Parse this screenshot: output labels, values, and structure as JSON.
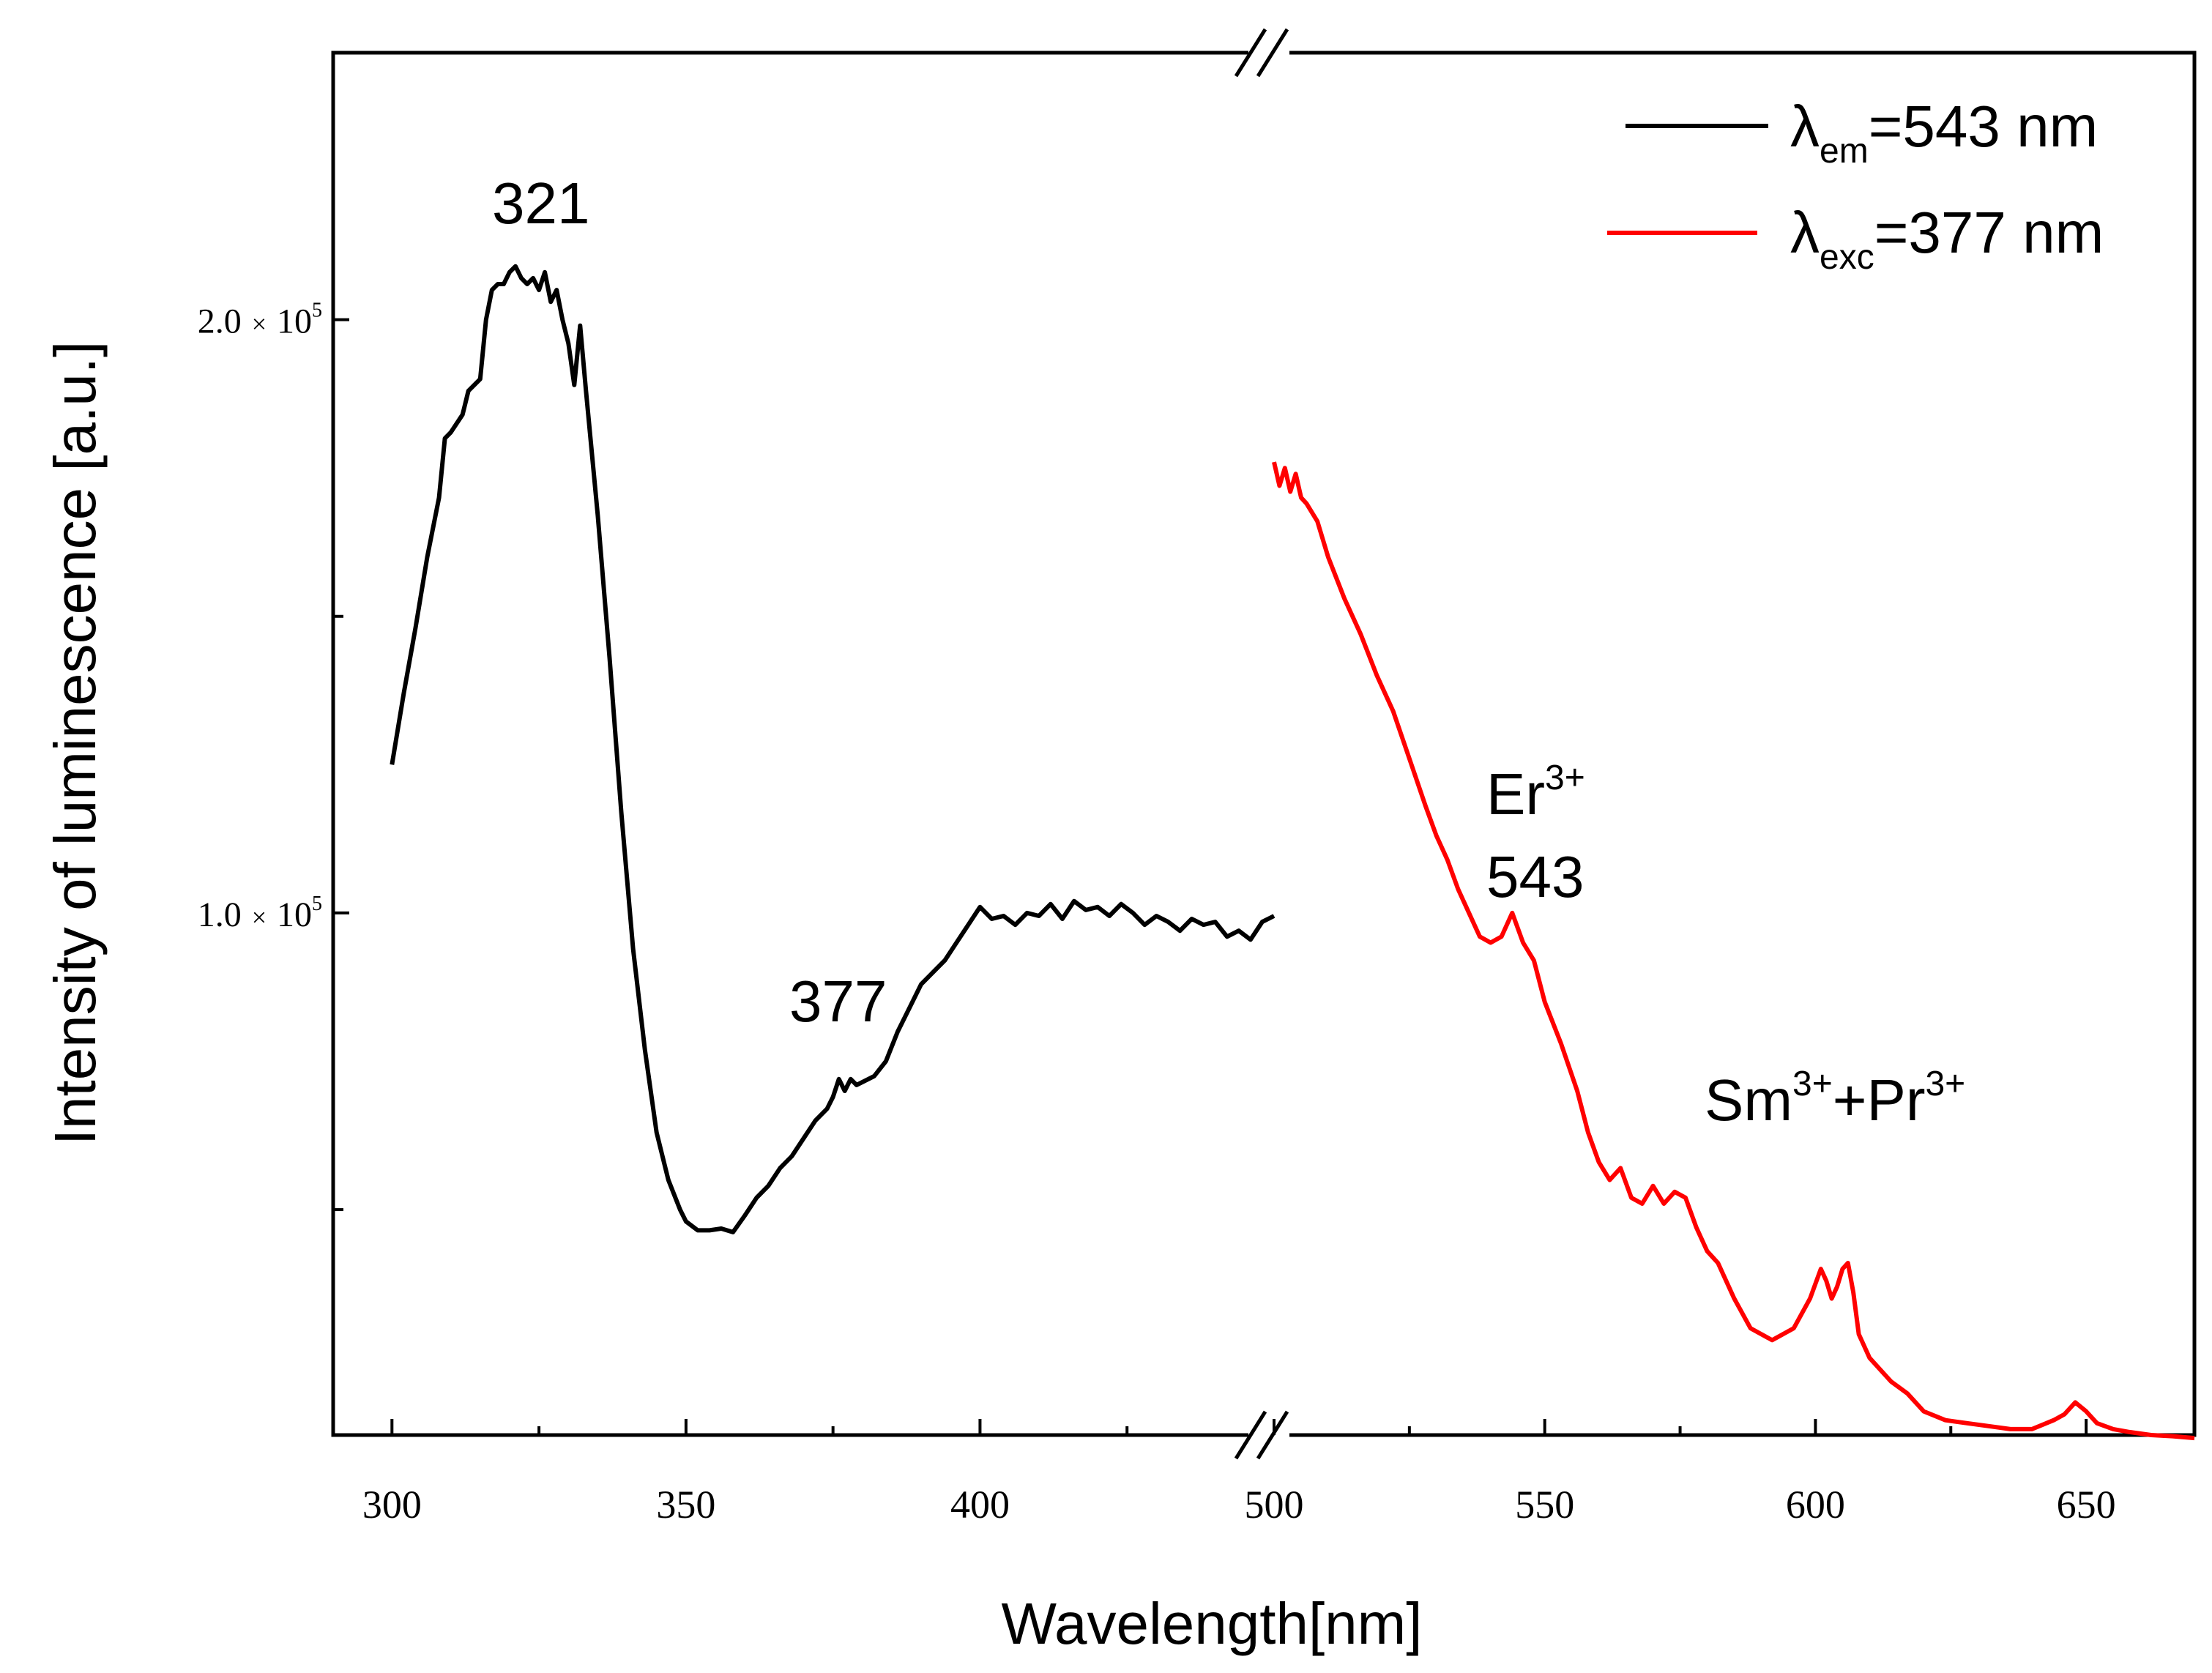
{
  "chart_data": {
    "type": "line",
    "title": "",
    "xlabel": "Wavelength[nm]",
    "ylabel": "Intensity of luminescence [a.u.]",
    "x_axis_break": [
      450,
      500
    ],
    "xlim_left": [
      290,
      450
    ],
    "xlim_right": [
      500,
      670
    ],
    "ylim": [
      12000,
      245000
    ],
    "x_ticks_left": [
      300,
      350,
      400
    ],
    "x_ticks_right": [
      500,
      550,
      600,
      650
    ],
    "y_tick_labels": [
      {
        "value": 200000,
        "mantissa": "2.0",
        "times": "×",
        "base": "10",
        "exp": "5"
      },
      {
        "value": 100000,
        "mantissa": "1.0",
        "times": "×",
        "base": "10",
        "exp": "5"
      }
    ],
    "y_minor_ticks": [
      150000,
      50000
    ],
    "legend": {
      "position": "top-right",
      "entries": [
        {
          "symbol": "λ",
          "sub": "em",
          "rest": "=543 nm",
          "color": "#000000"
        },
        {
          "symbol": "λ",
          "sub": "exc",
          "rest": "=377 nm",
          "color": "#ff0000"
        }
      ]
    },
    "annotations": {
      "peak_321": "321",
      "peak_377": "377",
      "er_ion": "Er",
      "er_charge": "3+",
      "er_wavelength": "543",
      "sm_ion": "Sm",
      "sm_charge": "3+",
      "plus": "+",
      "pr_ion": "Pr",
      "pr_charge": "3+"
    },
    "series": [
      {
        "name": "λem=543 nm",
        "color": "#000000",
        "x": [
          300,
          302,
          304,
          306,
          308,
          309,
          310,
          312,
          313,
          315,
          316,
          317,
          318,
          319,
          320,
          321,
          322,
          323,
          324,
          325,
          326,
          327,
          328,
          329,
          330,
          331,
          332,
          333,
          335,
          337,
          339,
          341,
          343,
          345,
          347,
          349,
          350,
          352,
          354,
          356,
          358,
          360,
          362,
          364,
          366,
          368,
          370,
          372,
          374,
          375,
          376,
          377,
          378,
          379,
          380,
          382,
          384,
          386,
          388,
          390,
          392,
          394,
          396,
          398,
          400,
          402,
          404,
          406,
          408,
          410,
          412,
          414,
          416,
          418,
          420,
          422,
          424,
          426,
          428,
          430,
          432,
          434,
          436,
          438,
          440,
          442,
          444,
          446,
          448,
          450
        ],
        "y": [
          125000,
          137000,
          148000,
          160000,
          170000,
          180000,
          181000,
          184000,
          188000,
          190000,
          200000,
          205000,
          206000,
          206000,
          208000,
          209000,
          207000,
          206000,
          207000,
          205000,
          208000,
          203000,
          205000,
          200000,
          196000,
          189000,
          199000,
          188000,
          167000,
          143000,
          117000,
          94000,
          77000,
          63000,
          55000,
          50000,
          48000,
          46500,
          46500,
          46800,
          46200,
          49000,
          52000,
          54000,
          57000,
          59000,
          62000,
          65000,
          67000,
          69000,
          72000,
          70000,
          72000,
          71000,
          71500,
          72500,
          75000,
          80000,
          84000,
          88000,
          90000,
          92000,
          95000,
          98000,
          101000,
          99000,
          99500,
          98000,
          100000,
          99500,
          101500,
          99000,
          102000,
          100500,
          101000,
          99500,
          101500,
          100000,
          98000,
          99500,
          98500,
          97000,
          99000,
          98000,
          98500,
          96000,
          97000,
          95500,
          98500,
          99500
        ]
      },
      {
        "name": "λexc=377 nm",
        "color": "#ff0000",
        "x": [
          500,
          501,
          502,
          503,
          504,
          505,
          506,
          508,
          510,
          513,
          516,
          519,
          522,
          525,
          528,
          530,
          532,
          534,
          536,
          538,
          540,
          542,
          544,
          546,
          548,
          550,
          553,
          556,
          558,
          560,
          562,
          564,
          566,
          568,
          570,
          572,
          574,
          576,
          578,
          580,
          582,
          585,
          588,
          592,
          596,
          599,
          601,
          602,
          603,
          604,
          605,
          606,
          607,
          608,
          610,
          612,
          614,
          617,
          620,
          624,
          628,
          632,
          636,
          640,
          644,
          646,
          648,
          650,
          652,
          655,
          658,
          662,
          666,
          670
        ],
        "y": [
          176000,
          172000,
          175000,
          171000,
          174000,
          170000,
          169000,
          166000,
          160000,
          153000,
          147000,
          140000,
          134000,
          126000,
          118000,
          113000,
          109000,
          104000,
          100000,
          96000,
          95000,
          96000,
          100000,
          95000,
          92000,
          85000,
          78000,
          70000,
          63000,
          58000,
          55000,
          57000,
          52000,
          51000,
          54000,
          51000,
          53000,
          52000,
          47000,
          43000,
          41000,
          35000,
          30000,
          28000,
          30000,
          35000,
          40000,
          38000,
          35000,
          37000,
          40000,
          41000,
          36000,
          29000,
          25000,
          23000,
          21000,
          19000,
          16000,
          14500,
          14000,
          13500,
          13000,
          13000,
          14500,
          15500,
          17500,
          16000,
          14000,
          13000,
          12500,
          12000,
          11800,
          11500
        ]
      }
    ]
  }
}
